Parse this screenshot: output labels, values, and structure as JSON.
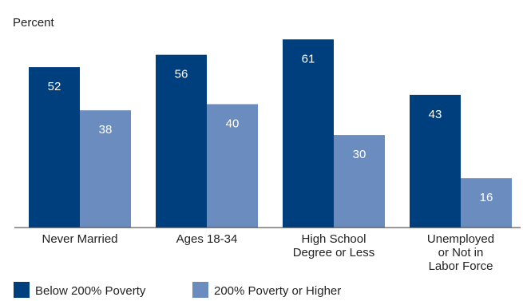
{
  "chart_data": {
    "type": "bar",
    "ylabel": "Percent",
    "ylim": [
      0,
      66
    ],
    "grid": false,
    "legend": "bottom-left",
    "categories": [
      [
        "Never Married"
      ],
      [
        "Ages 18-34"
      ],
      [
        "High School",
        "Degree or Less"
      ],
      [
        "Unemployed",
        "or Not in",
        "Labor Force"
      ]
    ],
    "series": [
      {
        "name": "Below 200% Poverty",
        "color": "#003f7d",
        "values": [
          52,
          56,
          61,
          43
        ]
      },
      {
        "name": "200% Poverty or Higher",
        "color": "#6b8cbe",
        "values": [
          38,
          40,
          30,
          16
        ]
      }
    ]
  }
}
